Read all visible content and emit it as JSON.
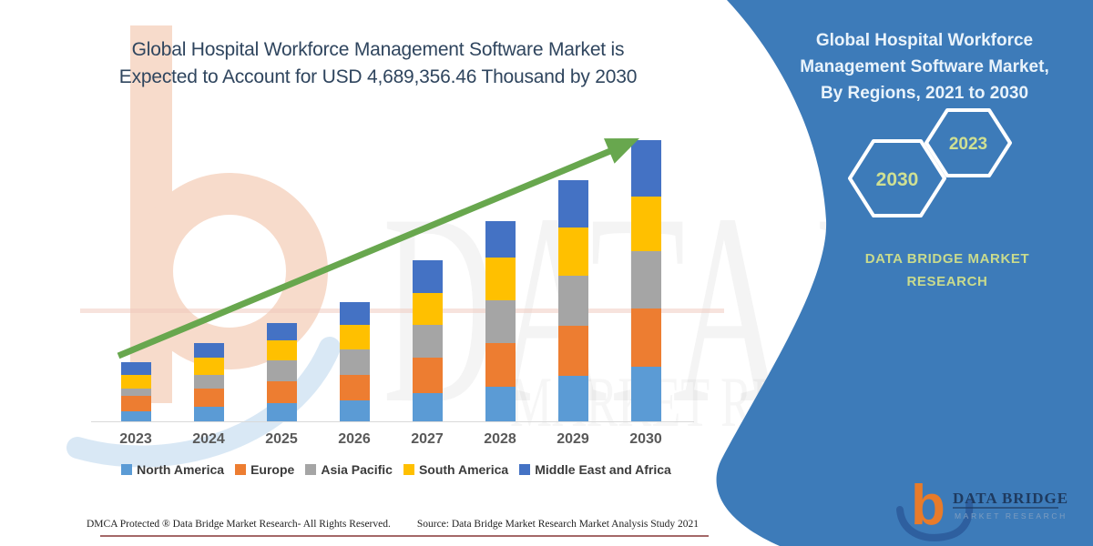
{
  "header": {
    "title_line1": "Global Hospital Workforce Management Software Market is",
    "title_line2": "Expected to Account for USD 4,689,356.46 Thousand by 2030"
  },
  "chart_data": {
    "type": "bar",
    "stacked": true,
    "unit": "USD Thousand",
    "categories": [
      "2023",
      "2024",
      "2025",
      "2026",
      "2027",
      "2028",
      "2029",
      "2030"
    ],
    "series": [
      {
        "key": "north-america",
        "name": "North America",
        "color": "#5B9BD5",
        "values": [
          167000,
          243000,
          304000,
          349000,
          470000,
          577000,
          759000,
          911000
        ]
      },
      {
        "key": "europe",
        "name": "Europe",
        "color": "#ED7D31",
        "values": [
          258000,
          304000,
          364000,
          425000,
          592000,
          728000,
          835000,
          971000
        ]
      },
      {
        "key": "asia-pacific",
        "name": "Asia Pacific",
        "color": "#A5A5A5",
        "values": [
          121000,
          228000,
          349000,
          425000,
          546000,
          713000,
          835000,
          956000
        ]
      },
      {
        "key": "south-america",
        "name": "South America",
        "color": "#FFC000",
        "values": [
          228000,
          288000,
          334000,
          410000,
          531000,
          713000,
          804000,
          911000
        ]
      },
      {
        "key": "middle-east-and-africa",
        "name": "Middle East and Africa",
        "color": "#4472C4",
        "values": [
          212000,
          243000,
          288000,
          379000,
          546000,
          607000,
          789000,
          940356.46
        ]
      }
    ],
    "total_2030": "4,689,356.46",
    "ylim": [
      0,
      4689356.46
    ],
    "grid": false,
    "legend_position": "bottom",
    "trend_arrow": {
      "present": true,
      "color": "#68a74e"
    }
  },
  "panel": {
    "background": "#3d7bb9",
    "title_lines": [
      "Global Hospital Workforce",
      "Management Software Market,",
      "By Regions, 2021 to 2030"
    ],
    "hexagons": [
      {
        "label": "2030"
      },
      {
        "label": "2023"
      }
    ],
    "brand": "DATA BRIDGE MARKET\nRESEARCH",
    "logo": {
      "name": "b",
      "wordmark": "DATA BRIDGE",
      "tagline": "MARKET RESEARCH"
    }
  },
  "watermark": {
    "text_main": "DATA BRI",
    "text_sub": "MARKET RESEAR"
  },
  "footer": {
    "dmca": "DMCA Protected ® Data Bridge Market Research-  All Rights Reserved.",
    "source": "Source: Data Bridge Market Research  Market Analysis Study 2021"
  }
}
